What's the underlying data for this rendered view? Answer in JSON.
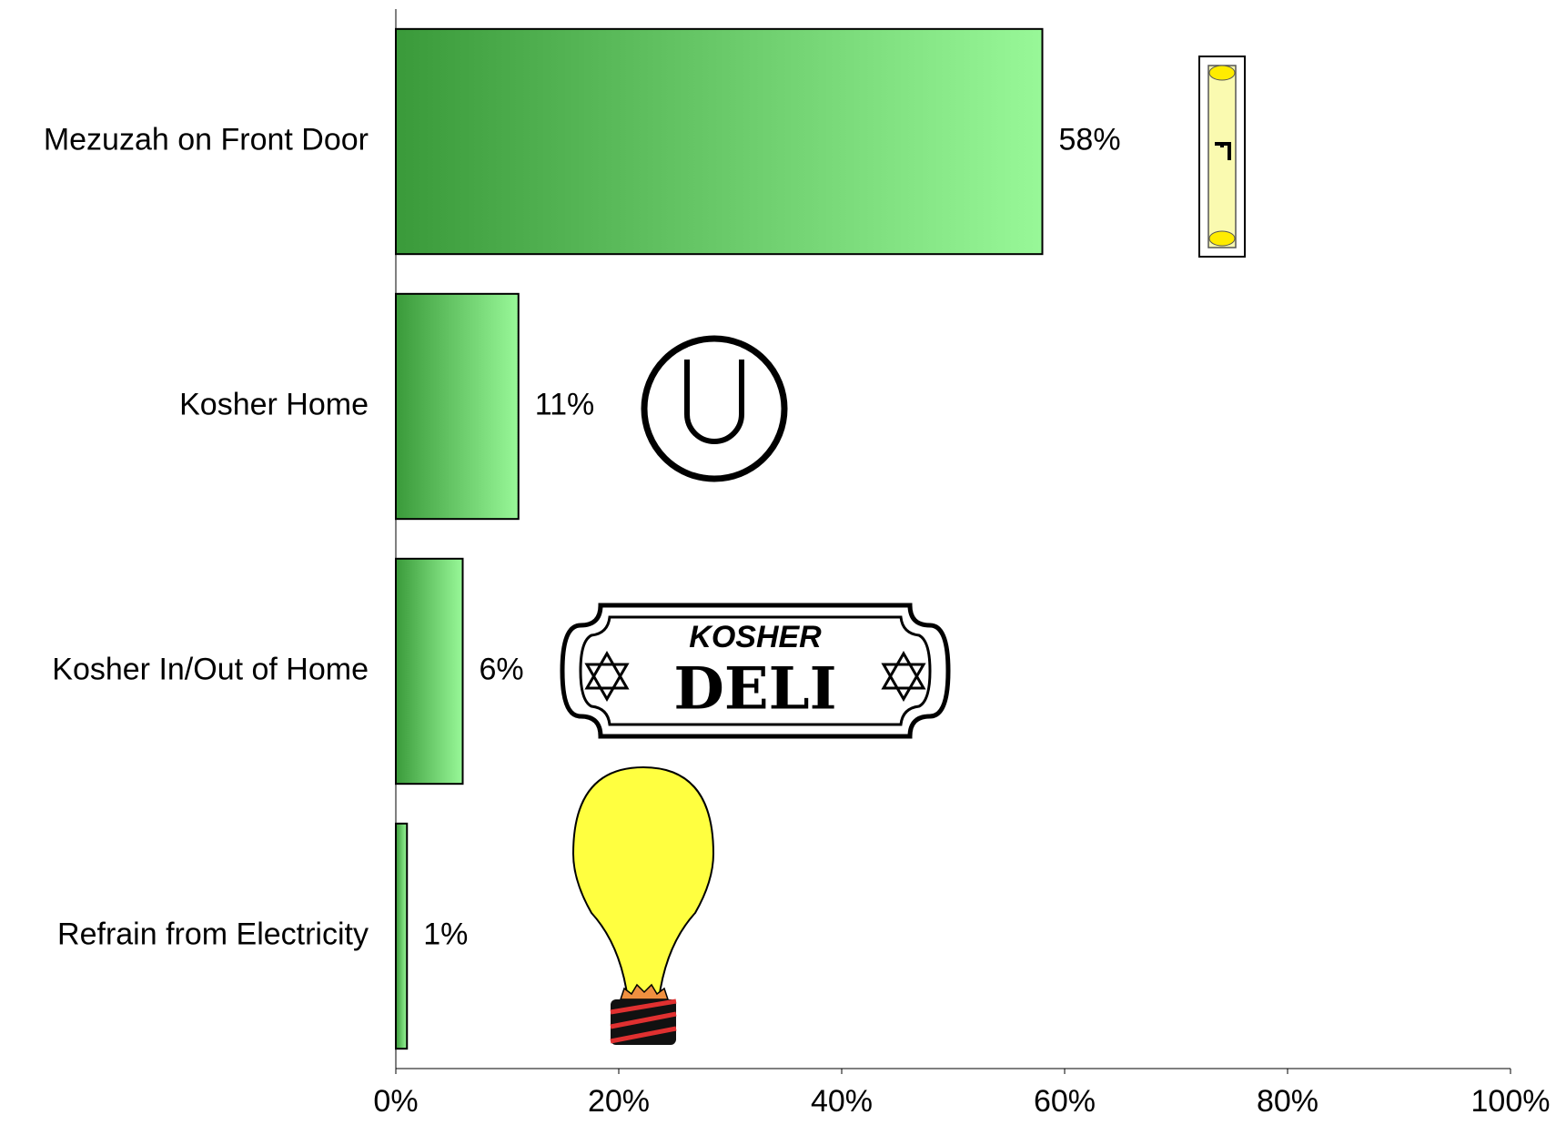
{
  "chart_data": {
    "type": "bar",
    "orientation": "horizontal",
    "categories": [
      "Mezuzah on Front Door",
      "Kosher Home",
      "Kosher In/Out of Home",
      "Refrain from Electricity"
    ],
    "values": [
      58,
      11,
      6,
      1
    ],
    "value_labels": [
      "58%",
      "11%",
      "6%",
      "1%"
    ],
    "color": "#4caf50",
    "xlim": [
      0,
      100
    ],
    "xticks": [
      {
        "value": 0,
        "label": "0%"
      },
      {
        "value": 20,
        "label": "20%"
      },
      {
        "value": 40,
        "label": "40%"
      },
      {
        "value": 60,
        "label": "60%"
      },
      {
        "value": 80,
        "label": "80%"
      },
      {
        "value": 100,
        "label": "100%"
      }
    ],
    "grid": false,
    "annotations": [
      "KOSHER",
      "DELI"
    ]
  }
}
